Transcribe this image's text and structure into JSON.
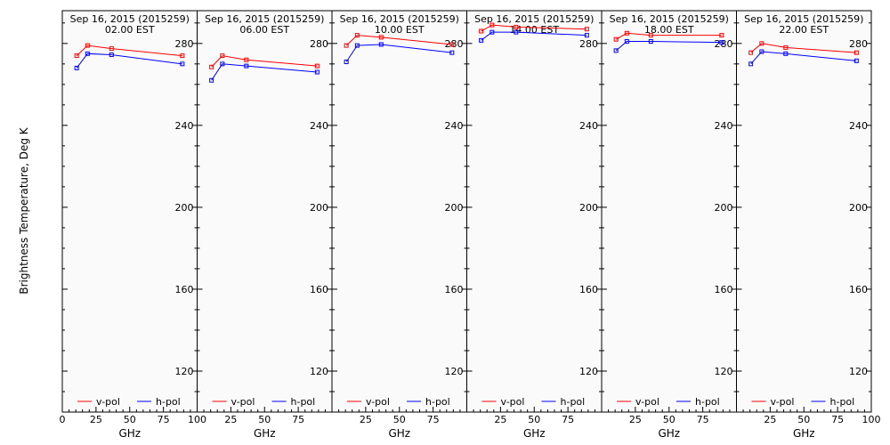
{
  "figure": {
    "ylabel": "Brightness Temperature, Deg K",
    "xlabel": "GHz"
  },
  "chart_data": [
    {
      "type": "line",
      "title": "Sep 16, 2015 (2015259)",
      "subtitle": "02.00 EST",
      "xlabel": "GHz",
      "ylabel": "Brightness Temperature, Deg K",
      "xlim": [
        0,
        100
      ],
      "ylim": [
        100,
        296
      ],
      "xticks": [
        0,
        25,
        50,
        75,
        100
      ],
      "xtick_labels": [
        "0",
        "25",
        "50",
        "75",
        "100"
      ],
      "yticks": [
        120,
        160,
        200,
        240,
        280
      ],
      "legend": "bottom",
      "series": [
        {
          "name": "v-pol",
          "color": "#ff0000",
          "x": [
            10.65,
            18.7,
            36.5,
            89
          ],
          "y": [
            274,
            279,
            277.5,
            274
          ]
        },
        {
          "name": "h-pol",
          "color": "#0000ff",
          "x": [
            10.65,
            18.7,
            36.5,
            89
          ],
          "y": [
            268,
            275,
            274.5,
            270
          ]
        }
      ]
    },
    {
      "type": "line",
      "title": "Sep 16, 2015 (2015259)",
      "subtitle": "06.00 EST",
      "xlabel": "GHz",
      "ylabel": "",
      "xlim": [
        0,
        100
      ],
      "ylim": [
        100,
        296
      ],
      "xticks": [
        0,
        25,
        50,
        75,
        100
      ],
      "xtick_labels": [
        "",
        "25",
        "50",
        "75",
        ""
      ],
      "yticks": [
        120,
        160,
        200,
        240,
        280
      ],
      "legend": "bottom",
      "series": [
        {
          "name": "v-pol",
          "color": "#ff0000",
          "x": [
            10.65,
            18.7,
            36.5,
            89
          ],
          "y": [
            268.5,
            274,
            272,
            269
          ]
        },
        {
          "name": "h-pol",
          "color": "#0000ff",
          "x": [
            10.65,
            18.7,
            36.5,
            89
          ],
          "y": [
            262,
            270,
            269,
            266
          ]
        }
      ]
    },
    {
      "type": "line",
      "title": "Sep 16, 2015 (2015259)",
      "subtitle": "10.00 EST",
      "xlabel": "GHz",
      "ylabel": "",
      "xlim": [
        0,
        100
      ],
      "ylim": [
        100,
        296
      ],
      "xticks": [
        0,
        25,
        50,
        75,
        100
      ],
      "xtick_labels": [
        "",
        "25",
        "50",
        "75",
        ""
      ],
      "yticks": [
        120,
        160,
        200,
        240,
        280
      ],
      "legend": "bottom",
      "series": [
        {
          "name": "v-pol",
          "color": "#ff0000",
          "x": [
            10.65,
            18.7,
            36.5,
            89
          ],
          "y": [
            279,
            284,
            283,
            279.5
          ]
        },
        {
          "name": "h-pol",
          "color": "#0000ff",
          "x": [
            10.65,
            18.7,
            36.5,
            89
          ],
          "y": [
            271,
            279,
            279.5,
            275.5
          ]
        }
      ]
    },
    {
      "type": "line",
      "title": "Sep 16, 2015 (2015259)",
      "subtitle": "14.00 EST",
      "xlabel": "GHz",
      "ylabel": "",
      "xlim": [
        0,
        100
      ],
      "ylim": [
        100,
        296
      ],
      "xticks": [
        0,
        25,
        50,
        75,
        100
      ],
      "xtick_labels": [
        "",
        "25",
        "50",
        "75",
        ""
      ],
      "yticks": [
        120,
        160,
        200,
        240,
        280
      ],
      "legend": "bottom",
      "series": [
        {
          "name": "v-pol",
          "color": "#ff0000",
          "x": [
            10.65,
            18.7,
            36.5,
            89
          ],
          "y": [
            286,
            289,
            288,
            287
          ]
        },
        {
          "name": "h-pol",
          "color": "#0000ff",
          "x": [
            10.65,
            18.7,
            36.5,
            89
          ],
          "y": [
            281.5,
            285.5,
            285.5,
            284
          ]
        }
      ]
    },
    {
      "type": "line",
      "title": "Sep 16, 2015 (2015259)",
      "subtitle": "18.00 EST",
      "xlabel": "GHz",
      "ylabel": "",
      "xlim": [
        0,
        100
      ],
      "ylim": [
        100,
        296
      ],
      "xticks": [
        0,
        25,
        50,
        75,
        100
      ],
      "xtick_labels": [
        "",
        "25",
        "50",
        "75",
        ""
      ],
      "yticks": [
        120,
        160,
        200,
        240,
        280
      ],
      "legend": "bottom",
      "series": [
        {
          "name": "v-pol",
          "color": "#ff0000",
          "x": [
            10.65,
            18.7,
            36.5,
            89
          ],
          "y": [
            282,
            285,
            284,
            284
          ]
        },
        {
          "name": "h-pol",
          "color": "#0000ff",
          "x": [
            10.65,
            18.7,
            36.5,
            89
          ],
          "y": [
            276.5,
            281,
            281,
            280.5
          ]
        }
      ]
    },
    {
      "type": "line",
      "title": "Sep 16, 2015 (2015259)",
      "subtitle": "22.00 EST",
      "xlabel": "GHz",
      "ylabel": "",
      "xlim": [
        0,
        100
      ],
      "ylim": [
        100,
        296
      ],
      "xticks": [
        0,
        25,
        50,
        75,
        100
      ],
      "xtick_labels": [
        "",
        "25",
        "50",
        "75",
        "100"
      ],
      "yticks": [
        120,
        160,
        200,
        240,
        280
      ],
      "legend": "bottom",
      "series": [
        {
          "name": "v-pol",
          "color": "#ff0000",
          "x": [
            10.65,
            18.7,
            36.5,
            89
          ],
          "y": [
            275.5,
            280,
            278,
            275.5
          ]
        },
        {
          "name": "h-pol",
          "color": "#0000ff",
          "x": [
            10.65,
            18.7,
            36.5,
            89
          ],
          "y": [
            270,
            276,
            275,
            271.5
          ]
        }
      ]
    }
  ]
}
